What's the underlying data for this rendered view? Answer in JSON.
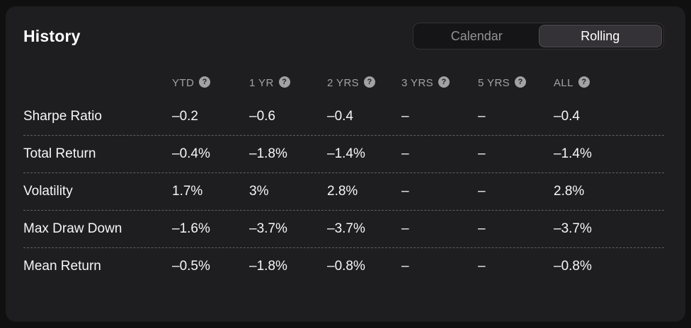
{
  "header": {
    "title": "History"
  },
  "toggle": {
    "selected": "Rolling",
    "options": [
      {
        "label": "Calendar",
        "active": false
      },
      {
        "label": "Rolling",
        "active": true
      }
    ]
  },
  "table": {
    "help_glyph": "?",
    "columns": [
      {
        "label": "YTD"
      },
      {
        "label": "1 YR"
      },
      {
        "label": "2 YRS"
      },
      {
        "label": "3 YRS"
      },
      {
        "label": "5 YRS"
      },
      {
        "label": "ALL"
      }
    ],
    "rows": [
      {
        "label": "Sharpe Ratio",
        "values": [
          "–0.2",
          "–0.6",
          "–0.4",
          "–",
          "–",
          "–0.4"
        ]
      },
      {
        "label": "Total Return",
        "values": [
          "–0.4%",
          "–1.8%",
          "–1.4%",
          "–",
          "–",
          "–1.4%"
        ]
      },
      {
        "label": "Volatility",
        "values": [
          "1.7%",
          "3%",
          "2.8%",
          "–",
          "–",
          "2.8%"
        ]
      },
      {
        "label": "Max Draw Down",
        "values": [
          "–1.6%",
          "–3.7%",
          "–3.7%",
          "–",
          "–",
          "–3.7%"
        ]
      },
      {
        "label": "Mean Return",
        "values": [
          "–0.5%",
          "–1.8%",
          "–0.8%",
          "–",
          "–",
          "–0.8%"
        ]
      }
    ]
  },
  "colors": {
    "page_bg": "#101011",
    "card_bg": "#1e1d1f",
    "active_segment_bg": "#343236",
    "muted_text": "#a2a1a4",
    "primary_text": "#f7f6f7"
  }
}
